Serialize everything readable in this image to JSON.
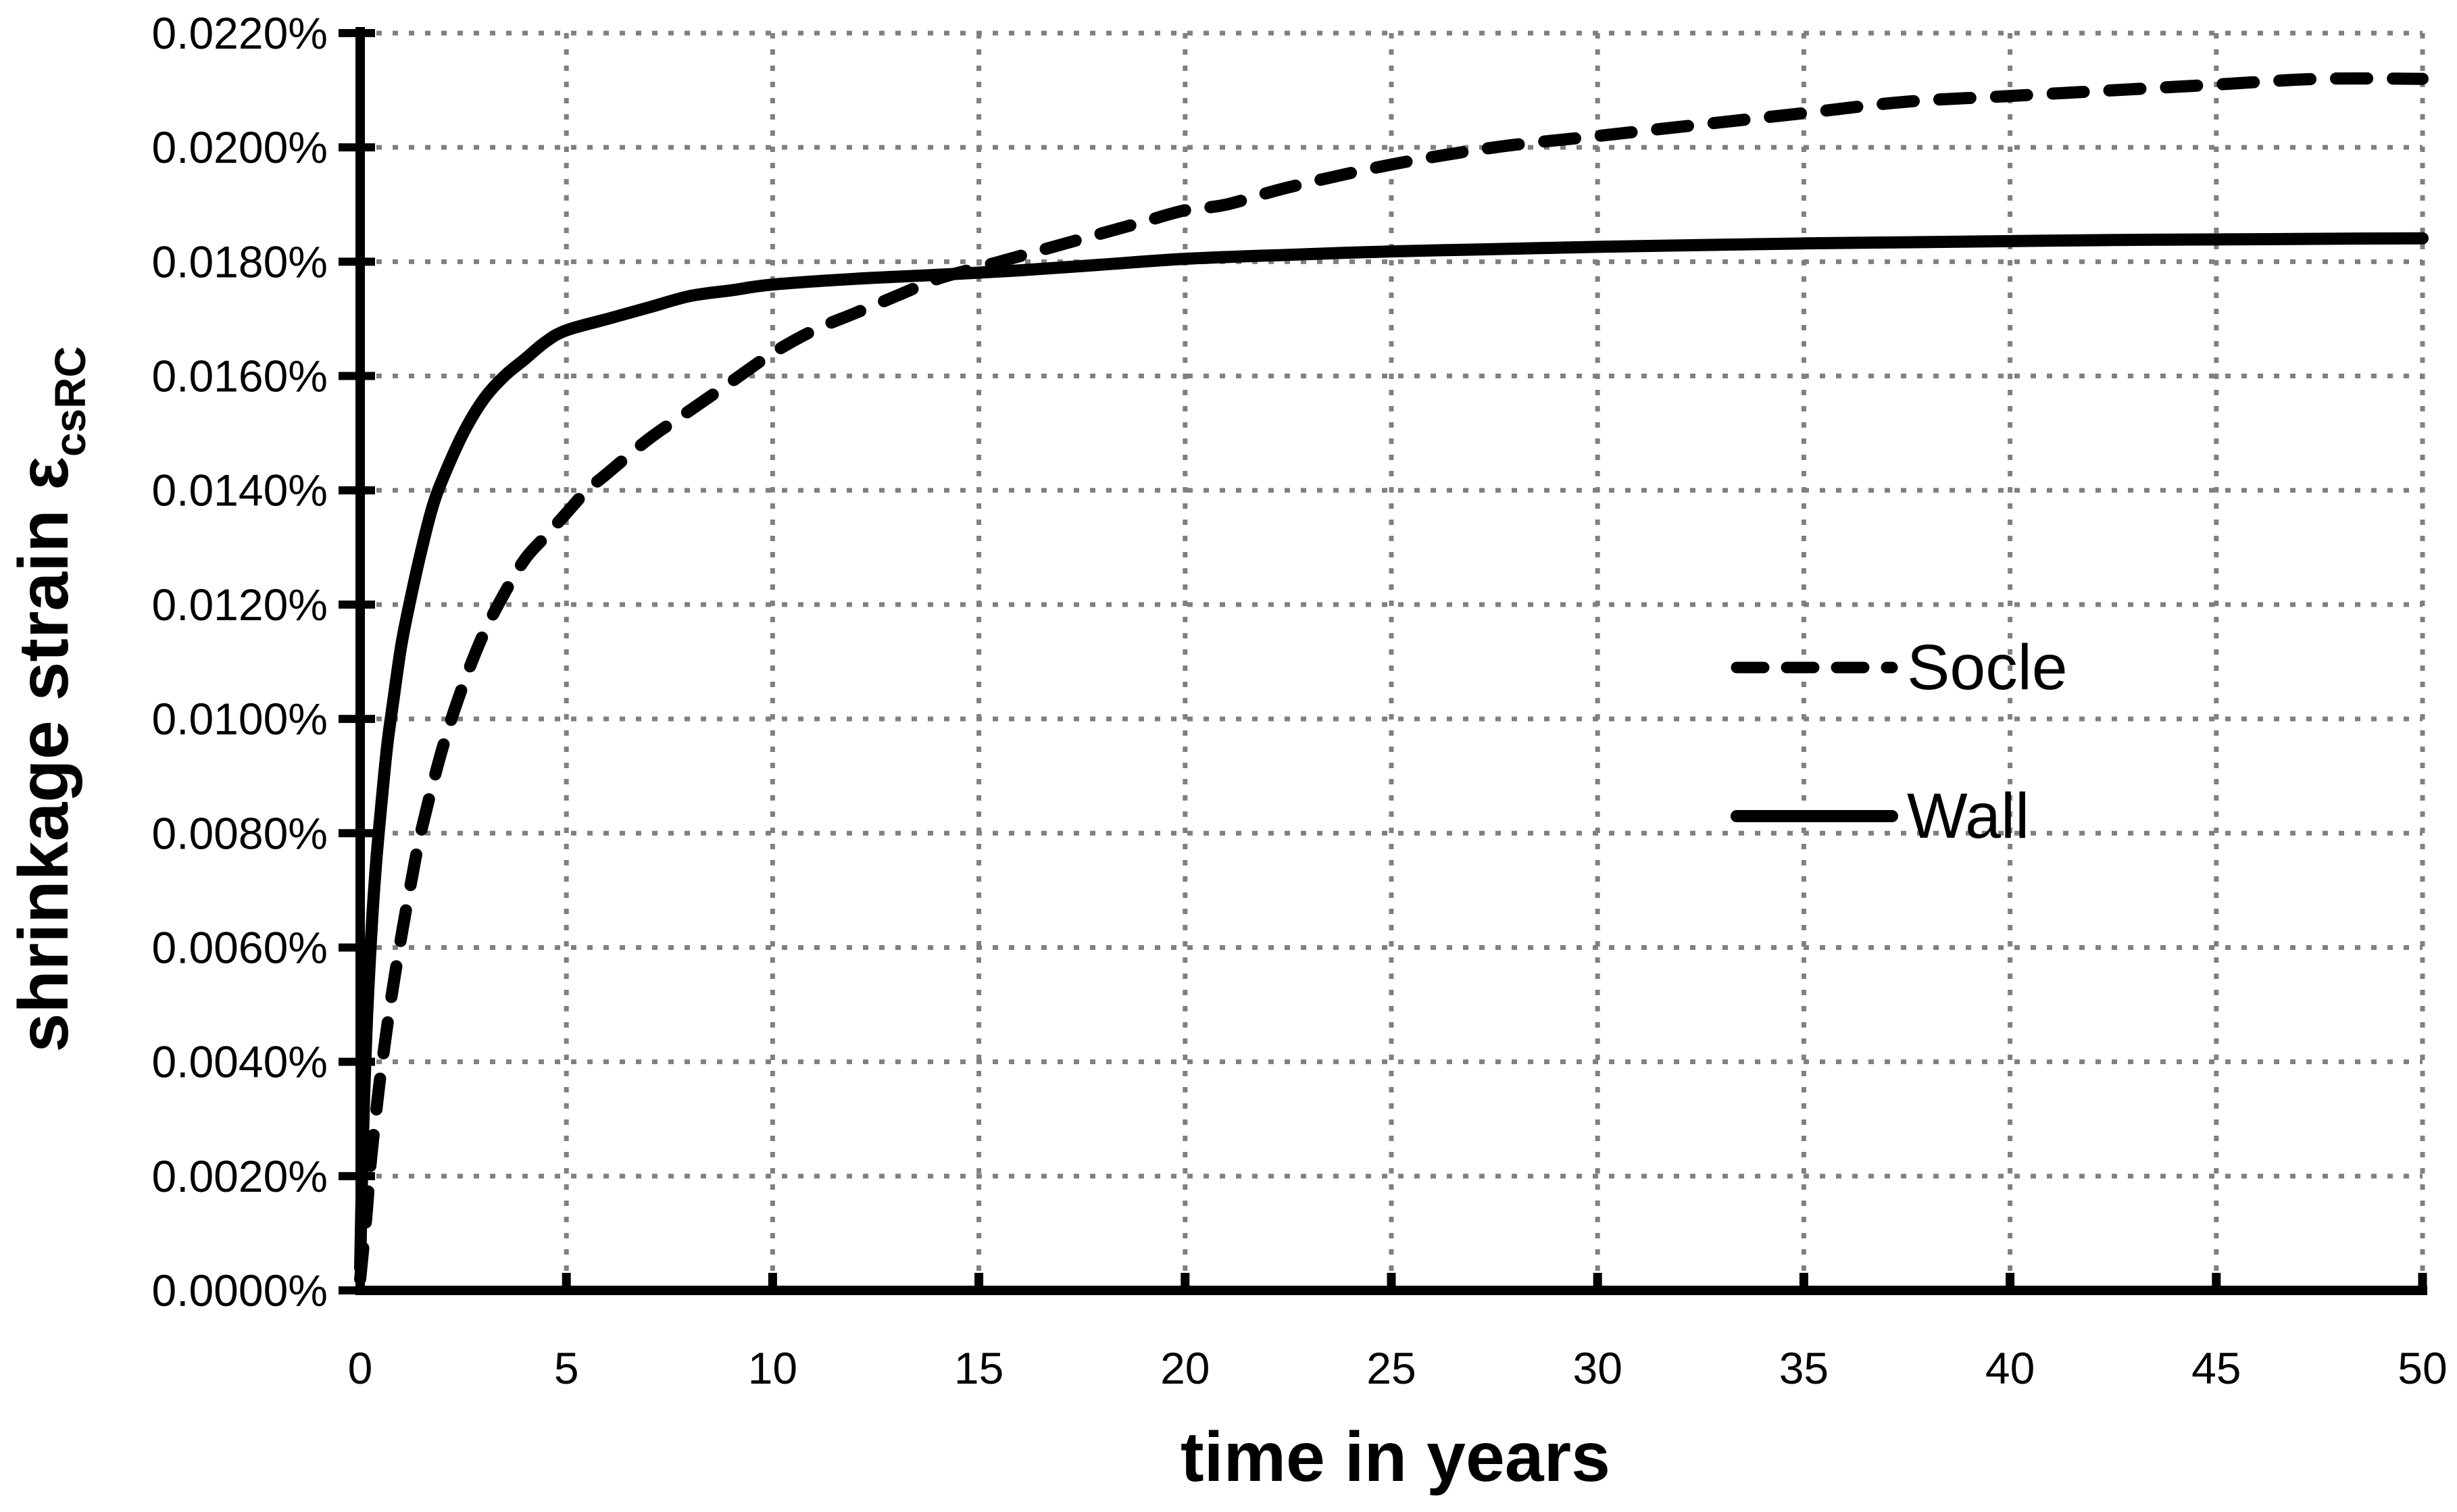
{
  "figure": {
    "background_color": "#ffffff",
    "text_color": "#000000",
    "grid_color": "#808080",
    "series_color": "#000000"
  },
  "chart_data": {
    "type": "line",
    "title": "",
    "xlabel": "time in years",
    "ylabel": "shrinkage strain ε",
    "ylabel_subscript": "csRC",
    "xlim": [
      0,
      50
    ],
    "ylim_percent": [
      0.0,
      0.022
    ],
    "grid": true,
    "gridline_style": "dotted",
    "legend_position": "inside-right-center",
    "x_ticks": [
      0,
      5,
      10,
      15,
      20,
      25,
      30,
      35,
      40,
      45,
      50
    ],
    "x_tick_labels": [
      "0",
      "5",
      "10",
      "15",
      "20",
      "25",
      "30",
      "35",
      "40",
      "45",
      "50"
    ],
    "y_ticks_percent": [
      0.0,
      0.002,
      0.004,
      0.006,
      0.008,
      0.01,
      0.012,
      0.014,
      0.016,
      0.018,
      0.02,
      0.022
    ],
    "y_tick_labels": [
      "0.0000%",
      "0.0020%",
      "0.0040%",
      "0.0060%",
      "0.0080%",
      "0.0100%",
      "0.0120%",
      "0.0140%",
      "0.0160%",
      "0.0180%",
      "0.0200%",
      "0.0220%"
    ],
    "series": [
      {
        "name": "Socle",
        "style": "dashed",
        "color": "#000000",
        "points_t_years_strain_percent": [
          [
            0,
            0.0002
          ],
          [
            0.15,
            0.0013
          ],
          [
            0.25,
            0.0022
          ],
          [
            0.4,
            0.0032
          ],
          [
            0.5,
            0.0038
          ],
          [
            0.75,
            0.0051
          ],
          [
            1,
            0.0062
          ],
          [
            1.25,
            0.0072
          ],
          [
            1.5,
            0.0081
          ],
          [
            2,
            0.0095
          ],
          [
            2.5,
            0.0106
          ],
          [
            3,
            0.0115
          ],
          [
            3.5,
            0.0122
          ],
          [
            4,
            0.0128
          ],
          [
            4.5,
            0.0132
          ],
          [
            5,
            0.0136
          ],
          [
            5.5,
            0.014
          ],
          [
            6,
            0.0143
          ],
          [
            7,
            0.0149
          ],
          [
            8,
            0.0154
          ],
          [
            9,
            0.0159
          ],
          [
            10,
            0.0164
          ],
          [
            11,
            0.0168
          ],
          [
            12,
            0.0171
          ],
          [
            13,
            0.0174
          ],
          [
            14,
            0.0177
          ],
          [
            15,
            0.0179
          ],
          [
            16,
            0.0181
          ],
          [
            17,
            0.0183
          ],
          [
            18,
            0.0185
          ],
          [
            19,
            0.0187
          ],
          [
            20,
            0.0189
          ],
          [
            21,
            0.019
          ],
          [
            22.5,
            0.0193
          ],
          [
            25,
            0.0197
          ],
          [
            27.5,
            0.02
          ],
          [
            30,
            0.0202
          ],
          [
            32.5,
            0.0204
          ],
          [
            35,
            0.0206
          ],
          [
            37.5,
            0.0208
          ],
          [
            40,
            0.0209
          ],
          [
            42.5,
            0.021
          ],
          [
            45,
            0.0211
          ],
          [
            47.5,
            0.0212
          ],
          [
            50,
            0.0212
          ]
        ]
      },
      {
        "name": "Wall",
        "style": "solid",
        "color": "#000000",
        "points_t_years_strain_percent": [
          [
            0,
            0.0004
          ],
          [
            0.05,
            0.0022
          ],
          [
            0.1,
            0.0035
          ],
          [
            0.15,
            0.0045
          ],
          [
            0.2,
            0.0053
          ],
          [
            0.3,
            0.0066
          ],
          [
            0.4,
            0.0076
          ],
          [
            0.5,
            0.0084
          ],
          [
            0.65,
            0.0095
          ],
          [
            0.8,
            0.0103
          ],
          [
            1,
            0.0113
          ],
          [
            1.25,
            0.0122
          ],
          [
            1.5,
            0.013
          ],
          [
            1.75,
            0.0137
          ],
          [
            2,
            0.0142
          ],
          [
            2.5,
            0.015
          ],
          [
            3,
            0.0156
          ],
          [
            3.5,
            0.016
          ],
          [
            4,
            0.0163
          ],
          [
            4.5,
            0.0166
          ],
          [
            5,
            0.0168
          ],
          [
            6,
            0.017
          ],
          [
            7,
            0.0172
          ],
          [
            8,
            0.0174
          ],
          [
            9,
            0.0175
          ],
          [
            10,
            0.0176
          ],
          [
            12,
            0.0177
          ],
          [
            14,
            0.01777
          ],
          [
            16,
            0.01785
          ],
          [
            18,
            0.01795
          ],
          [
            20,
            0.01805
          ],
          [
            22.5,
            0.01812
          ],
          [
            25,
            0.01818
          ],
          [
            27.5,
            0.01822
          ],
          [
            30,
            0.01826
          ],
          [
            32.5,
            0.01829
          ],
          [
            35,
            0.01832
          ],
          [
            37.5,
            0.01834
          ],
          [
            40,
            0.01836
          ],
          [
            42.5,
            0.01838
          ],
          [
            45,
            0.01839
          ],
          [
            47.5,
            0.0184
          ],
          [
            50,
            0.01841
          ]
        ]
      }
    ]
  }
}
